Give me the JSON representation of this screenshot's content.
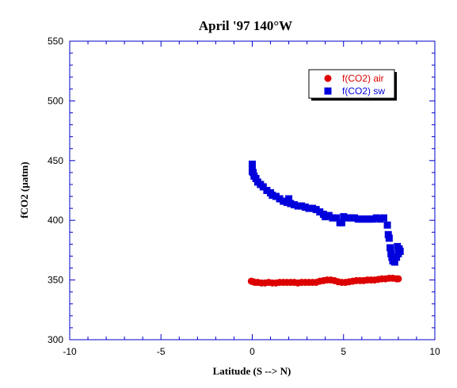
{
  "chart_data": {
    "type": "scatter",
    "title": "April '97 140°W",
    "xlabel": "Latitude (S --> N)",
    "ylabel": "fCO2 (µatm)",
    "xlim": [
      -10,
      10
    ],
    "ylim": [
      300,
      550
    ],
    "xticks": [
      -10,
      -5,
      0,
      5,
      10
    ],
    "yticks": [
      300,
      350,
      400,
      450,
      500,
      550
    ],
    "grid": false,
    "legend_position": "top-right",
    "series": [
      {
        "name": "f(CO2) air",
        "marker": "circle",
        "color": "#dd0000",
        "points": [
          [
            -0.05,
            349
          ],
          [
            0.05,
            348.5
          ],
          [
            0.15,
            348
          ],
          [
            0.3,
            348
          ],
          [
            0.5,
            347.5
          ],
          [
            0.7,
            347.5
          ],
          [
            0.9,
            348
          ],
          [
            1.1,
            347.5
          ],
          [
            1.3,
            347.5
          ],
          [
            1.5,
            348
          ],
          [
            1.7,
            348
          ],
          [
            1.9,
            348
          ],
          [
            2.1,
            348
          ],
          [
            2.3,
            348
          ],
          [
            2.5,
            347.5
          ],
          [
            2.7,
            348
          ],
          [
            2.9,
            348
          ],
          [
            3.1,
            348
          ],
          [
            3.3,
            348
          ],
          [
            3.5,
            348
          ],
          [
            3.7,
            349
          ],
          [
            3.9,
            349.5
          ],
          [
            4.1,
            350
          ],
          [
            4.3,
            350
          ],
          [
            4.5,
            349.5
          ],
          [
            4.7,
            348.5
          ],
          [
            4.9,
            348
          ],
          [
            5.1,
            348
          ],
          [
            5.3,
            348.5
          ],
          [
            5.5,
            349
          ],
          [
            5.7,
            349.5
          ],
          [
            5.9,
            349.5
          ],
          [
            6.1,
            349.5
          ],
          [
            6.3,
            350
          ],
          [
            6.5,
            350
          ],
          [
            6.7,
            350
          ],
          [
            6.9,
            350.5
          ],
          [
            7.1,
            351
          ],
          [
            7.3,
            351
          ],
          [
            7.5,
            351.5
          ],
          [
            7.7,
            351.5
          ],
          [
            7.9,
            351
          ],
          [
            8.0,
            351
          ]
        ]
      },
      {
        "name": "f(CO2) sw",
        "marker": "square",
        "color": "#0000dd",
        "points": [
          [
            0.0,
            447
          ],
          [
            0.0,
            444
          ],
          [
            0.0,
            441
          ],
          [
            0.05,
            440
          ],
          [
            0.1,
            437
          ],
          [
            0.2,
            435
          ],
          [
            0.3,
            432
          ],
          [
            0.45,
            430
          ],
          [
            0.6,
            428
          ],
          [
            0.8,
            425
          ],
          [
            1.0,
            423
          ],
          [
            1.1,
            421
          ],
          [
            1.3,
            420
          ],
          [
            1.5,
            418
          ],
          [
            1.7,
            416
          ],
          [
            1.9,
            415
          ],
          [
            2.0,
            418
          ],
          [
            2.1,
            414
          ],
          [
            2.3,
            413
          ],
          [
            2.5,
            412
          ],
          [
            2.7,
            412
          ],
          [
            2.9,
            411
          ],
          [
            3.1,
            410
          ],
          [
            3.3,
            410
          ],
          [
            3.5,
            409
          ],
          [
            3.7,
            407
          ],
          [
            3.9,
            405
          ],
          [
            4.0,
            403
          ],
          [
            4.2,
            404
          ],
          [
            4.4,
            402
          ],
          [
            4.6,
            402
          ],
          [
            4.8,
            398
          ],
          [
            4.9,
            398
          ],
          [
            5.0,
            403
          ],
          [
            5.2,
            402
          ],
          [
            5.4,
            402
          ],
          [
            5.6,
            402
          ],
          [
            5.8,
            401
          ],
          [
            6.0,
            401
          ],
          [
            6.2,
            401
          ],
          [
            6.4,
            401
          ],
          [
            6.6,
            401
          ],
          [
            6.8,
            402
          ],
          [
            7.0,
            401
          ],
          [
            7.2,
            402
          ],
          [
            7.4,
            396
          ],
          [
            7.45,
            388
          ],
          [
            7.5,
            385
          ],
          [
            7.55,
            377
          ],
          [
            7.6,
            372
          ],
          [
            7.65,
            369
          ],
          [
            7.7,
            366
          ],
          [
            7.8,
            365
          ],
          [
            7.9,
            369
          ],
          [
            8.0,
            372
          ],
          [
            8.05,
            376
          ],
          [
            8.1,
            374
          ],
          [
            7.95,
            378
          ]
        ]
      }
    ]
  }
}
